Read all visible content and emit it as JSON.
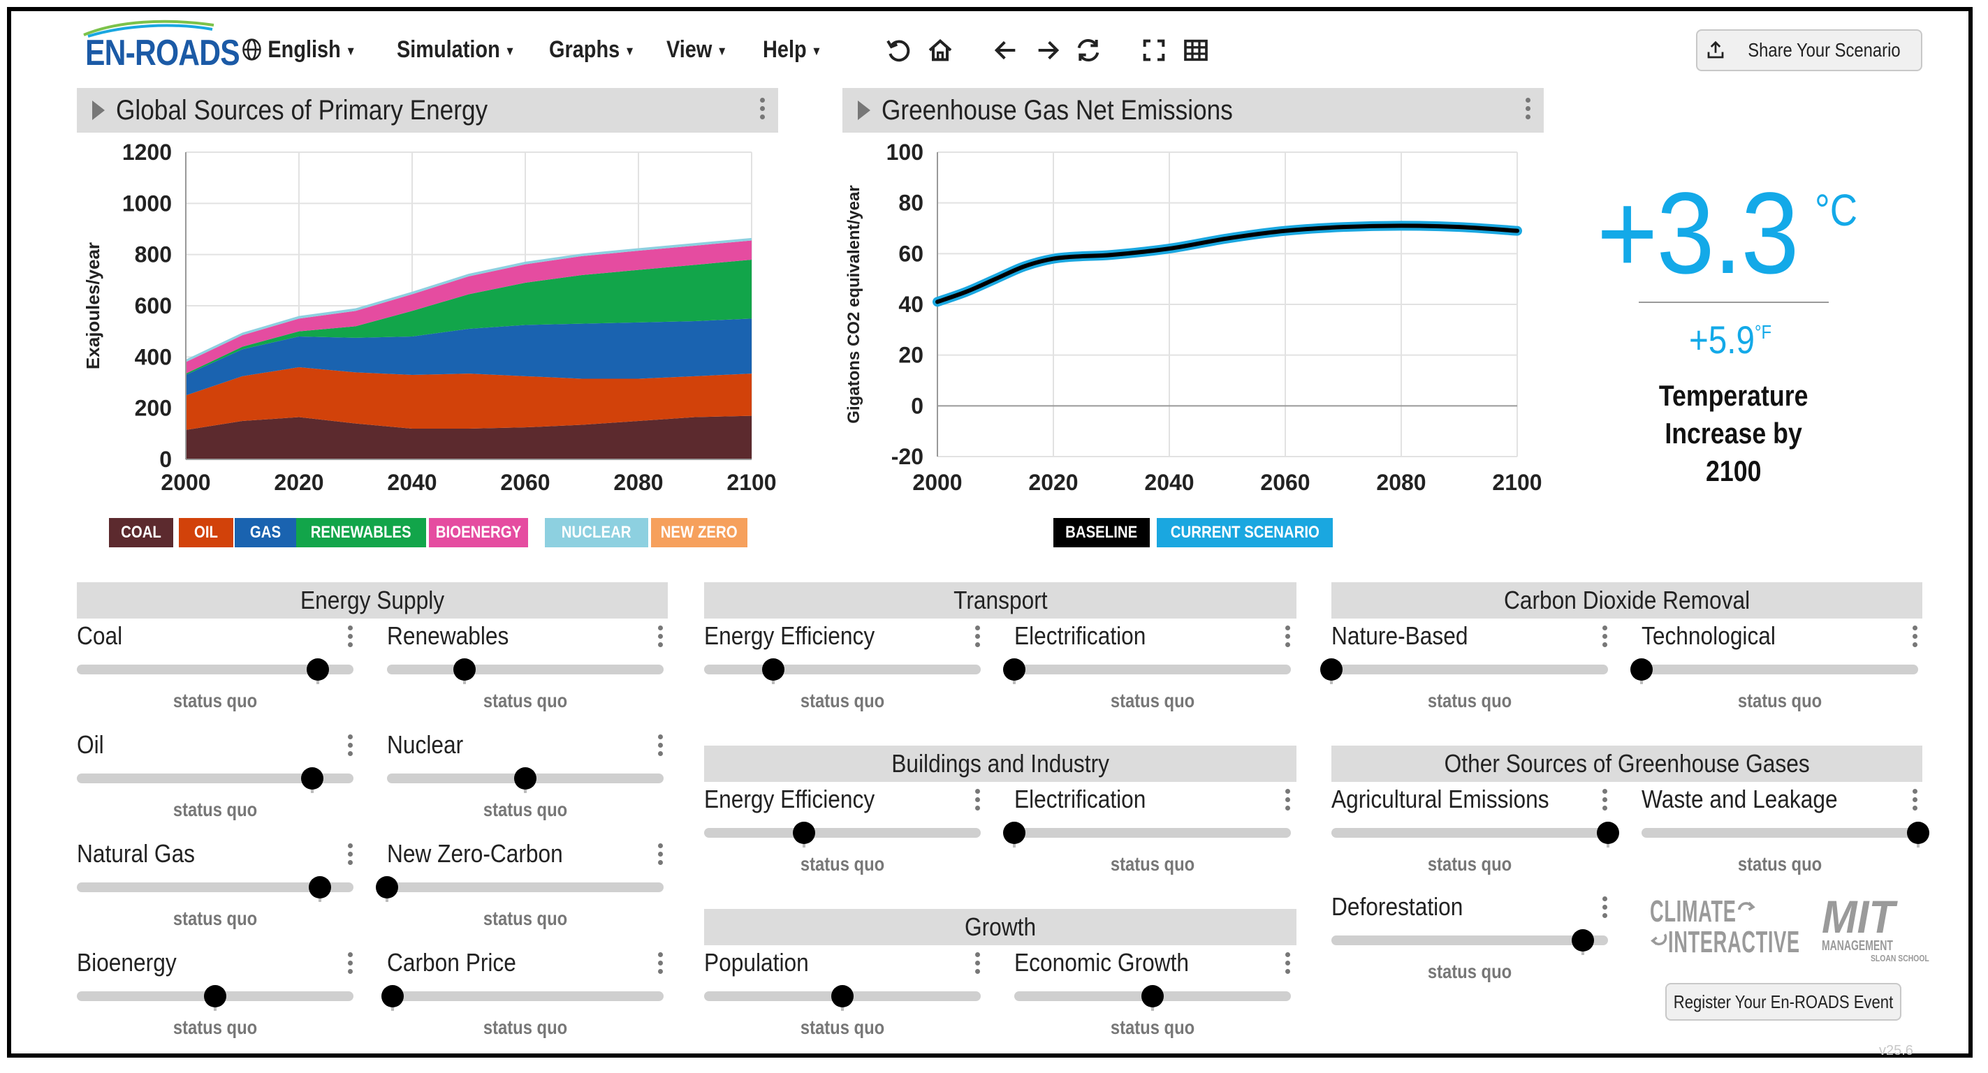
{
  "app": {
    "logo": "EN-ROADS",
    "version": "v25.6"
  },
  "menu": [
    {
      "label": "English",
      "icon": "globe-icon"
    },
    {
      "label": "Simulation"
    },
    {
      "label": "Graphs"
    },
    {
      "label": "View"
    },
    {
      "label": "Help"
    }
  ],
  "toolbar": {
    "icons": [
      "undo-icon",
      "home-icon",
      "back-icon",
      "forward-icon",
      "compare-icon",
      "fullscreen-icon",
      "grid-icon"
    ],
    "share_label": "Share Your Scenario"
  },
  "graphs": [
    {
      "title": "Global Sources of Primary Energy"
    },
    {
      "title": "Greenhouse Gas Net Emissions"
    }
  ],
  "chart_data": [
    {
      "type": "area",
      "title": "Global Sources of Primary Energy",
      "ylabel": "Exajoules/year",
      "xlabel": "",
      "x": [
        2000,
        2010,
        2020,
        2030,
        2040,
        2050,
        2060,
        2070,
        2080,
        2090,
        2100
      ],
      "xticks": [
        2000,
        2020,
        2040,
        2060,
        2080,
        2100
      ],
      "yticks": [
        0,
        200,
        400,
        600,
        800,
        1000,
        1200
      ],
      "ylim": [
        0,
        1200
      ],
      "stacked": true,
      "series": [
        {
          "name": "COAL",
          "color": "#5c2a2e",
          "values": [
            115,
            150,
            165,
            140,
            120,
            120,
            125,
            135,
            150,
            165,
            170
          ]
        },
        {
          "name": "OIL",
          "color": "#d2420a",
          "values": [
            135,
            175,
            195,
            200,
            210,
            215,
            200,
            180,
            165,
            160,
            165
          ]
        },
        {
          "name": "GAS",
          "color": "#1a63b0",
          "values": [
            80,
            105,
            120,
            135,
            150,
            175,
            200,
            215,
            220,
            215,
            215
          ]
        },
        {
          "name": "RENEWABLES",
          "color": "#12a54a",
          "values": [
            5,
            10,
            20,
            45,
            100,
            135,
            165,
            190,
            205,
            220,
            230
          ]
        },
        {
          "name": "BIOENERGY",
          "color": "#e54ca0",
          "values": [
            45,
            45,
            50,
            60,
            65,
            70,
            72,
            74,
            75,
            75,
            75
          ]
        },
        {
          "name": "NUCLEAR",
          "color": "#8dd0e0",
          "values": [
            10,
            10,
            10,
            10,
            10,
            10,
            10,
            10,
            10,
            10,
            10
          ]
        },
        {
          "name": "NEW ZERO",
          "color": "#f6a05c",
          "values": [
            0,
            0,
            0,
            0,
            0,
            0,
            0,
            0,
            0,
            0,
            0
          ]
        }
      ],
      "legend_position": "bottom"
    },
    {
      "type": "line",
      "title": "Greenhouse Gas Net Emissions",
      "ylabel": "Gigatons CO2 equivalent/year",
      "xlabel": "",
      "x": [
        2000,
        2005,
        2010,
        2015,
        2020,
        2025,
        2030,
        2040,
        2050,
        2060,
        2070,
        2080,
        2090,
        2100
      ],
      "xticks": [
        2000,
        2020,
        2040,
        2060,
        2080,
        2100
      ],
      "yticks": [
        -20,
        0,
        20,
        40,
        60,
        80,
        100
      ],
      "ylim": [
        -20,
        100
      ],
      "series": [
        {
          "name": "BASELINE",
          "color": "#000000",
          "values": [
            41,
            45,
            50,
            55,
            58,
            59,
            59.5,
            62,
            66,
            69,
            70.5,
            71,
            70.5,
            69
          ]
        },
        {
          "name": "CURRENT SCENARIO",
          "color": "#1aa7e0",
          "values": [
            41,
            45,
            50,
            55,
            58,
            59,
            59.5,
            62,
            66,
            69,
            70.5,
            71,
            70.5,
            69
          ]
        }
      ],
      "legend_position": "bottom"
    }
  ],
  "legend1": [
    "COAL",
    "OIL",
    "GAS",
    "RENEWABLES",
    "BIOENERGY",
    "NUCLEAR",
    "NEW ZERO"
  ],
  "legend2": [
    "BASELINE",
    "CURRENT SCENARIO"
  ],
  "temperature": {
    "celsius": "+3.3",
    "c_unit": "°C",
    "fahrenheit": "+5.9",
    "f_unit": "°F",
    "caption_line1": "Temperature",
    "caption_line2": "Increase by",
    "caption_line3": "2100"
  },
  "sections": {
    "energy_supply": "Energy Supply",
    "transport": "Transport",
    "cdr": "Carbon Dioxide Removal",
    "buildings": "Buildings and Industry",
    "other_ghg": "Other Sources of Greenhouse Gases",
    "growth": "Growth"
  },
  "sliders": [
    {
      "label": "Coal",
      "status": "status quo",
      "value": 0.87
    },
    {
      "label": "Renewables",
      "status": "status quo",
      "value": 0.28
    },
    {
      "label": "Oil",
      "status": "status quo",
      "value": 0.85
    },
    {
      "label": "Nuclear",
      "status": "status quo",
      "value": 0.5
    },
    {
      "label": "Natural Gas",
      "status": "status quo",
      "value": 0.88
    },
    {
      "label": "New Zero-Carbon",
      "status": "status quo",
      "value": 0.0
    },
    {
      "label": "Bioenergy",
      "status": "status quo",
      "value": 0.5
    },
    {
      "label": "Carbon Price",
      "status": "status quo",
      "value": 0.02
    },
    {
      "label": "Energy Efficiency",
      "status": "status quo",
      "value": 0.25
    },
    {
      "label": "Electrification",
      "status": "status quo",
      "value": 0.0
    },
    {
      "label": "Energy Efficiency",
      "status": "status quo",
      "value": 0.36
    },
    {
      "label": "Electrification",
      "status": "status quo",
      "value": 0.0
    },
    {
      "label": "Population",
      "status": "status quo",
      "value": 0.5
    },
    {
      "label": "Economic Growth",
      "status": "status quo",
      "value": 0.5
    },
    {
      "label": "Nature-Based",
      "status": "status quo",
      "value": 0.0
    },
    {
      "label": "Technological",
      "status": "status quo",
      "value": 0.0
    },
    {
      "label": "Agricultural Emissions",
      "status": "status quo",
      "value": 1.0
    },
    {
      "label": "Waste and Leakage",
      "status": "status quo",
      "value": 1.0
    },
    {
      "label": "Deforestation",
      "status": "status quo",
      "value": 0.91
    }
  ],
  "partners": {
    "climate_interactive_1": "CLIMATE",
    "climate_interactive_2": "INTERACTIVE",
    "mit_1": "MIT",
    "mit_2": "MANAGEMENT",
    "mit_3": "SLOAN SCHOOL"
  },
  "register_label": "Register Your En-ROADS Event"
}
